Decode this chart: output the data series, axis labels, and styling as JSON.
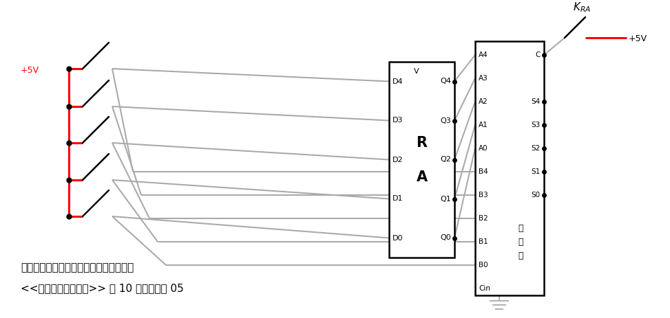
{
  "fig_w": 9.73,
  "fig_h": 4.63,
  "dpi": 100,
  "bg": "#ffffff",
  "gray": "#aaaaaa",
  "red": "#ff0000",
  "black": "#000000",
  "title": "用同一排开关既提供被加数、也提供加数",
  "subtitle": "<<穿越计算机的迎雾>> 第 10 章示例电路 05",
  "vcc": "+5V",
  "kra": "K",
  "kra_sub": "RA",
  "adder_label": "加法器",
  "ra_D": [
    "D4",
    "D3",
    "D2",
    "D1",
    "D0"
  ],
  "ra_Q": [
    "Q4",
    "Q3",
    "Q2",
    "Q1",
    "Q0"
  ],
  "ra_V": "V",
  "ra_R": "R",
  "ra_A": "A",
  "adder_left": [
    "A4",
    "A3",
    "A2",
    "A1",
    "A0",
    "B4",
    "B3",
    "B2",
    "B1",
    "B0",
    "Cin"
  ],
  "adder_right": [
    "C",
    "",
    "S4",
    "S3",
    "S2",
    "S1",
    "S0",
    "",
    "",
    "",
    ""
  ]
}
